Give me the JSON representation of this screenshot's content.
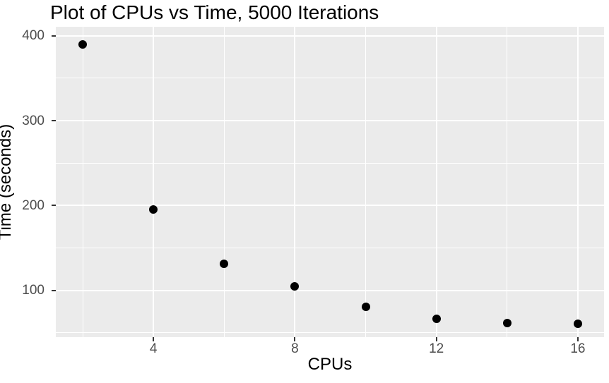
{
  "chart_data": {
    "type": "scatter",
    "title": "Plot of CPUs vs Time, 5000 Iterations",
    "xlabel": "CPUs",
    "ylabel": "Time (seconds)",
    "x": [
      2,
      4,
      6,
      8,
      10,
      12,
      14,
      16
    ],
    "y": [
      390,
      195,
      131,
      105,
      81,
      67,
      62,
      61
    ],
    "xlim": [
      1.24,
      16.74
    ],
    "ylim": [
      45,
      410.6
    ],
    "x_ticks": [
      4,
      8,
      12,
      16
    ],
    "y_ticks": [
      100,
      200,
      300,
      400
    ],
    "x_minor_ticks": [
      2,
      6,
      10,
      14
    ],
    "y_minor_ticks": [
      50,
      150,
      250,
      350
    ],
    "grid": "on",
    "legend": "none",
    "style": {
      "panel_background": "#EBEBEB",
      "grid_color": "#FFFFFF",
      "point_color": "#000000",
      "tick_label_color": "#4D4D4D",
      "tick_mark_color": "#333333",
      "text_color": "#000000",
      "page_background": "#FFFFFF"
    }
  }
}
